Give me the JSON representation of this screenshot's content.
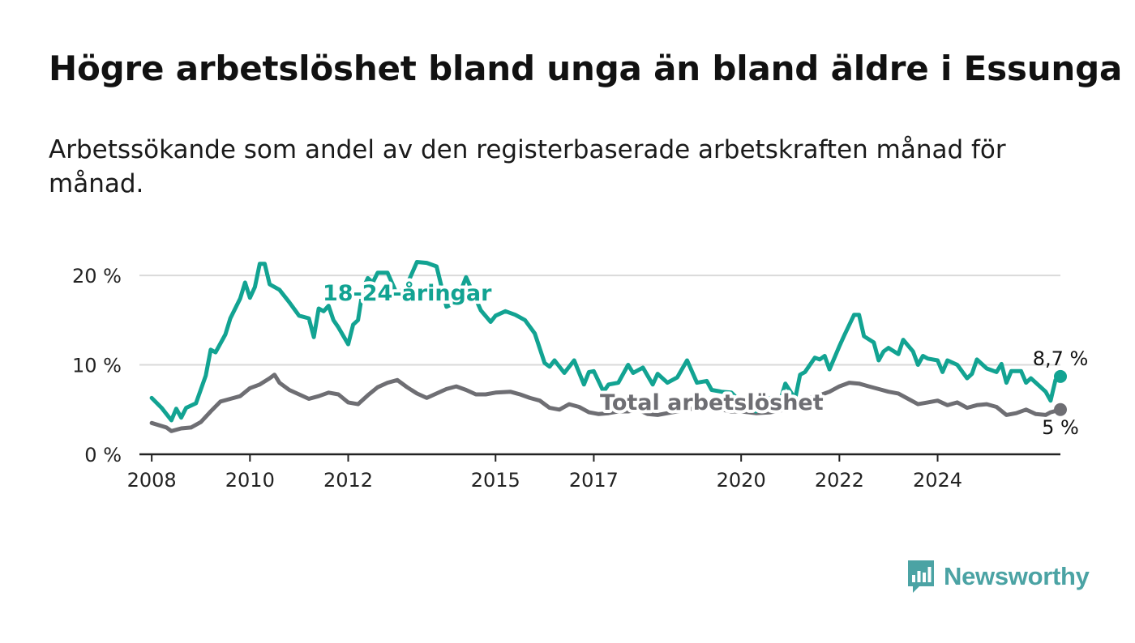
{
  "header": {
    "title": "Högre arbetslöshet bland unga än bland äldre i Essunga",
    "subtitle": "Arbetssökande som andel av den registerbaserade arbetskraften månad för månad."
  },
  "brand": {
    "name": "Newsworthy",
    "color": "#4ba3a4",
    "icon": "bar-chart-icon"
  },
  "colors": {
    "youth": "#12a392",
    "total": "#6e6e73",
    "grid": "#d9d9d9",
    "axis": "#222222"
  },
  "chart_data": {
    "type": "line",
    "title": "Högre arbetslöshet bland unga än bland äldre i Essunga",
    "subtitle": "Arbetssökande som andel av den registerbaserade arbetskraften månad för månad.",
    "unit": "%",
    "x_axis": {
      "range": [
        2007.75,
        2026.5
      ],
      "ticks": [
        2008,
        2010,
        2012,
        2015,
        2017,
        2020,
        2022,
        2024
      ],
      "tick_labels": [
        "2008",
        "2010",
        "2012",
        "2015",
        "2017",
        "2020",
        "2022",
        "2024"
      ]
    },
    "y_axis": {
      "range": [
        0,
        22
      ],
      "ticks": [
        0,
        10,
        20
      ],
      "tick_labels": [
        "0 %",
        "10 %",
        "20 %"
      ]
    },
    "grid": "horizontal",
    "series": [
      {
        "name": "18-24-åringar",
        "color": "#12a392",
        "end_label": "8,7 %",
        "points": [
          [
            2008.0,
            6.3
          ],
          [
            2008.2,
            5.2
          ],
          [
            2008.4,
            3.8
          ],
          [
            2008.5,
            5.1
          ],
          [
            2008.6,
            4.1
          ],
          [
            2008.7,
            5.2
          ],
          [
            2008.9,
            5.7
          ],
          [
            2009.1,
            8.8
          ],
          [
            2009.2,
            11.7
          ],
          [
            2009.3,
            11.4
          ],
          [
            2009.5,
            13.4
          ],
          [
            2009.6,
            15.2
          ],
          [
            2009.8,
            17.4
          ],
          [
            2009.9,
            19.2
          ],
          [
            2010.0,
            17.5
          ],
          [
            2010.1,
            18.7
          ],
          [
            2010.2,
            21.3
          ],
          [
            2010.3,
            21.3
          ],
          [
            2010.4,
            19.0
          ],
          [
            2010.6,
            18.4
          ],
          [
            2010.8,
            17.0
          ],
          [
            2011.0,
            15.5
          ],
          [
            2011.2,
            15.2
          ],
          [
            2011.3,
            13.1
          ],
          [
            2011.4,
            16.3
          ],
          [
            2011.5,
            16.0
          ],
          [
            2011.6,
            16.6
          ],
          [
            2011.7,
            15.0
          ],
          [
            2011.8,
            14.2
          ],
          [
            2012.0,
            12.3
          ],
          [
            2012.1,
            14.5
          ],
          [
            2012.2,
            15.0
          ],
          [
            2012.3,
            18.5
          ],
          [
            2012.4,
            19.7
          ],
          [
            2012.5,
            19.2
          ],
          [
            2012.6,
            20.3
          ],
          [
            2012.8,
            20.3
          ],
          [
            2013.0,
            17.8
          ],
          [
            2013.2,
            19.0
          ],
          [
            2013.4,
            21.5
          ],
          [
            2013.6,
            21.4
          ],
          [
            2013.8,
            21.0
          ],
          [
            2014.0,
            16.5
          ],
          [
            2014.2,
            17.0
          ],
          [
            2014.4,
            19.8
          ],
          [
            2014.7,
            16.1
          ],
          [
            2014.9,
            14.8
          ],
          [
            2015.0,
            15.5
          ],
          [
            2015.2,
            16.0
          ],
          [
            2015.4,
            15.6
          ],
          [
            2015.6,
            15.0
          ],
          [
            2015.8,
            13.5
          ],
          [
            2016.0,
            10.2
          ],
          [
            2016.1,
            9.8
          ],
          [
            2016.2,
            10.5
          ],
          [
            2016.4,
            9.1
          ],
          [
            2016.6,
            10.5
          ],
          [
            2016.8,
            7.8
          ],
          [
            2016.9,
            9.2
          ],
          [
            2017.0,
            9.3
          ],
          [
            2017.2,
            7.0
          ],
          [
            2017.3,
            7.8
          ],
          [
            2017.5,
            8.0
          ],
          [
            2017.7,
            10.0
          ],
          [
            2017.8,
            9.1
          ],
          [
            2018.0,
            9.7
          ],
          [
            2018.2,
            7.8
          ],
          [
            2018.3,
            9.0
          ],
          [
            2018.5,
            8.0
          ],
          [
            2018.7,
            8.6
          ],
          [
            2018.9,
            10.5
          ],
          [
            2019.1,
            8.0
          ],
          [
            2019.3,
            8.2
          ],
          [
            2019.4,
            7.2
          ],
          [
            2019.6,
            7.0
          ],
          [
            2019.8,
            6.9
          ],
          [
            2020.0,
            5.8
          ],
          [
            2020.2,
            6.4
          ],
          [
            2020.3,
            4.8
          ],
          [
            2020.5,
            6.0
          ],
          [
            2020.6,
            6.3
          ],
          [
            2020.8,
            6.1
          ],
          [
            2020.9,
            7.9
          ],
          [
            2021.1,
            6.2
          ],
          [
            2021.2,
            8.9
          ],
          [
            2021.3,
            9.2
          ],
          [
            2021.5,
            10.8
          ],
          [
            2021.6,
            10.6
          ],
          [
            2021.7,
            11.0
          ],
          [
            2021.8,
            9.5
          ],
          [
            2022.0,
            12.1
          ],
          [
            2022.1,
            13.3
          ],
          [
            2022.3,
            15.6
          ],
          [
            2022.4,
            15.6
          ],
          [
            2022.5,
            13.2
          ],
          [
            2022.7,
            12.5
          ],
          [
            2022.8,
            10.5
          ],
          [
            2022.9,
            11.5
          ],
          [
            2023.0,
            11.9
          ],
          [
            2023.2,
            11.2
          ],
          [
            2023.3,
            12.8
          ],
          [
            2023.5,
            11.5
          ],
          [
            2023.6,
            10.0
          ],
          [
            2023.7,
            11.0
          ],
          [
            2023.8,
            10.7
          ],
          [
            2024.0,
            10.5
          ],
          [
            2024.1,
            9.2
          ],
          [
            2024.2,
            10.5
          ],
          [
            2024.4,
            10.0
          ],
          [
            2024.6,
            8.5
          ],
          [
            2024.7,
            9.0
          ],
          [
            2024.8,
            10.6
          ],
          [
            2025.0,
            9.6
          ],
          [
            2025.2,
            9.2
          ],
          [
            2025.3,
            10.1
          ],
          [
            2025.4,
            8.0
          ],
          [
            2025.5,
            9.3
          ],
          [
            2025.7,
            9.3
          ],
          [
            2025.8,
            8.0
          ],
          [
            2025.9,
            8.5
          ],
          [
            2026.0,
            8.0
          ],
          [
            2026.1,
            7.5
          ],
          [
            2026.2,
            7.0
          ],
          [
            2026.3,
            6.0
          ],
          [
            2026.4,
            8.3
          ],
          [
            2026.5,
            8.7
          ]
        ]
      },
      {
        "name": "Total arbetslöshet",
        "color": "#6e6e73",
        "end_label": "5 %",
        "points": [
          [
            2008.0,
            3.5
          ],
          [
            2008.3,
            3.0
          ],
          [
            2008.4,
            2.6
          ],
          [
            2008.6,
            2.9
          ],
          [
            2008.8,
            3.0
          ],
          [
            2009.0,
            3.6
          ],
          [
            2009.2,
            4.8
          ],
          [
            2009.4,
            5.9
          ],
          [
            2009.6,
            6.2
          ],
          [
            2009.8,
            6.5
          ],
          [
            2010.0,
            7.4
          ],
          [
            2010.2,
            7.8
          ],
          [
            2010.4,
            8.5
          ],
          [
            2010.5,
            8.9
          ],
          [
            2010.6,
            8.0
          ],
          [
            2010.8,
            7.2
          ],
          [
            2011.0,
            6.7
          ],
          [
            2011.2,
            6.2
          ],
          [
            2011.4,
            6.5
          ],
          [
            2011.6,
            6.9
          ],
          [
            2011.8,
            6.7
          ],
          [
            2012.0,
            5.8
          ],
          [
            2012.2,
            5.6
          ],
          [
            2012.4,
            6.6
          ],
          [
            2012.6,
            7.5
          ],
          [
            2012.8,
            8.0
          ],
          [
            2013.0,
            8.3
          ],
          [
            2013.2,
            7.5
          ],
          [
            2013.4,
            6.8
          ],
          [
            2013.6,
            6.3
          ],
          [
            2013.8,
            6.8
          ],
          [
            2014.0,
            7.3
          ],
          [
            2014.2,
            7.6
          ],
          [
            2014.4,
            7.2
          ],
          [
            2014.6,
            6.7
          ],
          [
            2014.8,
            6.7
          ],
          [
            2015.0,
            6.9
          ],
          [
            2015.3,
            7.0
          ],
          [
            2015.5,
            6.7
          ],
          [
            2015.7,
            6.3
          ],
          [
            2015.9,
            6.0
          ],
          [
            2016.1,
            5.2
          ],
          [
            2016.3,
            5.0
          ],
          [
            2016.5,
            5.6
          ],
          [
            2016.7,
            5.3
          ],
          [
            2016.9,
            4.7
          ],
          [
            2017.1,
            4.5
          ],
          [
            2017.3,
            4.6
          ],
          [
            2017.5,
            4.8
          ],
          [
            2017.7,
            4.8
          ],
          [
            2017.9,
            5.0
          ],
          [
            2018.1,
            4.5
          ],
          [
            2018.3,
            4.4
          ],
          [
            2018.5,
            4.6
          ],
          [
            2018.7,
            4.8
          ],
          [
            2018.9,
            5.0
          ],
          [
            2019.1,
            5.2
          ],
          [
            2019.3,
            5.2
          ],
          [
            2019.6,
            5.0
          ],
          [
            2019.8,
            4.8
          ],
          [
            2020.0,
            4.8
          ],
          [
            2020.3,
            4.6
          ],
          [
            2020.6,
            4.7
          ],
          [
            2020.9,
            5.0
          ],
          [
            2021.2,
            5.4
          ],
          [
            2021.4,
            6.3
          ],
          [
            2021.6,
            6.6
          ],
          [
            2021.8,
            7.0
          ],
          [
            2022.0,
            7.6
          ],
          [
            2022.2,
            8.0
          ],
          [
            2022.4,
            7.9
          ],
          [
            2022.6,
            7.6
          ],
          [
            2022.8,
            7.3
          ],
          [
            2023.0,
            7.0
          ],
          [
            2023.2,
            6.8
          ],
          [
            2023.4,
            6.2
          ],
          [
            2023.6,
            5.6
          ],
          [
            2023.8,
            5.8
          ],
          [
            2024.0,
            6.0
          ],
          [
            2024.2,
            5.5
          ],
          [
            2024.4,
            5.8
          ],
          [
            2024.6,
            5.2
          ],
          [
            2024.8,
            5.5
          ],
          [
            2025.0,
            5.6
          ],
          [
            2025.2,
            5.3
          ],
          [
            2025.4,
            4.4
          ],
          [
            2025.6,
            4.6
          ],
          [
            2025.8,
            5.0
          ],
          [
            2026.0,
            4.5
          ],
          [
            2026.2,
            4.4
          ],
          [
            2026.3,
            4.7
          ],
          [
            2026.5,
            5.0
          ]
        ]
      }
    ],
    "annotations": [
      {
        "text": "18-24-åringar",
        "series": "18-24-åringar",
        "x": 2013.2,
        "y": 17.2
      },
      {
        "text": "Total arbetslöshet",
        "series": "Total arbetslöshet",
        "x": 2019.4,
        "y": 5.0
      }
    ]
  }
}
